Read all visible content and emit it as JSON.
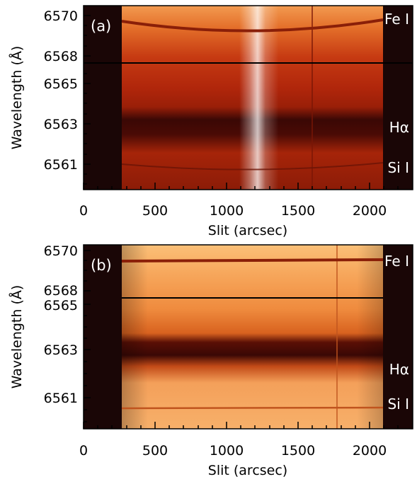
{
  "figure": {
    "panels": [
      {
        "tag": "(a)",
        "xlabel": "Slit (arcsec)",
        "ylabel": "Wavelength (Å)",
        "xticks": [
          "0",
          "500",
          "1000",
          "1500",
          "2000"
        ],
        "yticks": [
          "6570",
          "6568",
          "6565",
          "6563",
          "6561"
        ],
        "line_labels": [
          "Fe I",
          "Hα",
          "Si I"
        ]
      },
      {
        "tag": "(b)",
        "xlabel": "Slit (arcsec)",
        "ylabel": "Wavelength (Å)",
        "xticks": [
          "0",
          "500",
          "1000",
          "1500",
          "2000"
        ],
        "yticks": [
          "6570",
          "6568",
          "6565",
          "6563",
          "6561"
        ],
        "line_labels": [
          "Fe I",
          "Hα",
          "Si I"
        ]
      }
    ],
    "colors": {
      "dark_background": "#1a0606",
      "red_body": "#b0260b",
      "bright_orange": "#f5a35a",
      "absorption_dark": "#3a0805"
    }
  }
}
